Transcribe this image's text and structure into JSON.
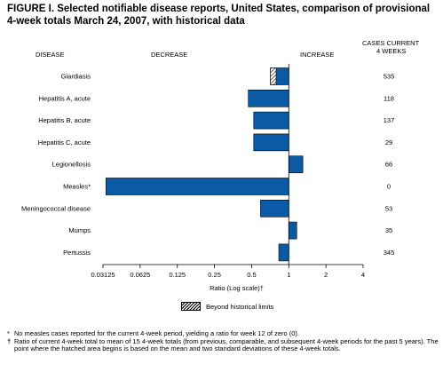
{
  "title": "FIGURE I. Selected notifiable disease reports, United States, comparison of provisional 4-week totals March 24, 2007, with historical data",
  "headers": {
    "disease": "DISEASE",
    "decrease": "DECREASE",
    "increase": "INCREASE",
    "cases_line1": "CASES CURRENT",
    "cases_line2": "4 WEEKS"
  },
  "chart_data": {
    "type": "bar",
    "orientation": "horizontal",
    "x_scale": "log2",
    "xlabel": "Ratio (Log scale)†",
    "xlim": [
      0.03125,
      4
    ],
    "x_ticks": [
      "0.03125",
      "0.0625",
      "0.125",
      "0.25",
      "0.5",
      "1",
      "2",
      "4"
    ],
    "x_tick_values": [
      0.03125,
      0.0625,
      0.125,
      0.25,
      0.5,
      1,
      2,
      4
    ],
    "baseline": 1,
    "bar_color": "#0a5aa5",
    "categories": [
      "Giardiasis",
      "Hepatitis A, acute",
      "Hepatitis B, acute",
      "Hepatitis C, acute",
      "Legionellosis",
      "Measles*",
      "Meningococcal disease",
      "Mumps",
      "Pertussis"
    ],
    "values": [
      0.71,
      0.47,
      0.52,
      0.52,
      1.3,
      0.033,
      0.59,
      1.16,
      0.83
    ],
    "beyond_historical_limits_start": [
      0.79,
      null,
      null,
      null,
      null,
      null,
      null,
      null,
      null
    ],
    "cases_current_4_weeks": [
      "535",
      "118",
      "137",
      "29",
      "66",
      "0",
      "53",
      "35",
      "345"
    ]
  },
  "legend": {
    "label": "Beyond historical limits"
  },
  "footnotes": [
    {
      "mark": "*",
      "text": "No measles cases reported for the current 4-week period, yielding a ratio for week 12 of zero (0)."
    },
    {
      "mark": "†",
      "text": "Ratio of current 4-week total to mean of 15 4-week totals (from previous, comparable, and subsequent 4-week periods for the past 5 years). The point where the hatched area begins is based on the mean and two standard deviations of these 4-week totals."
    }
  ]
}
